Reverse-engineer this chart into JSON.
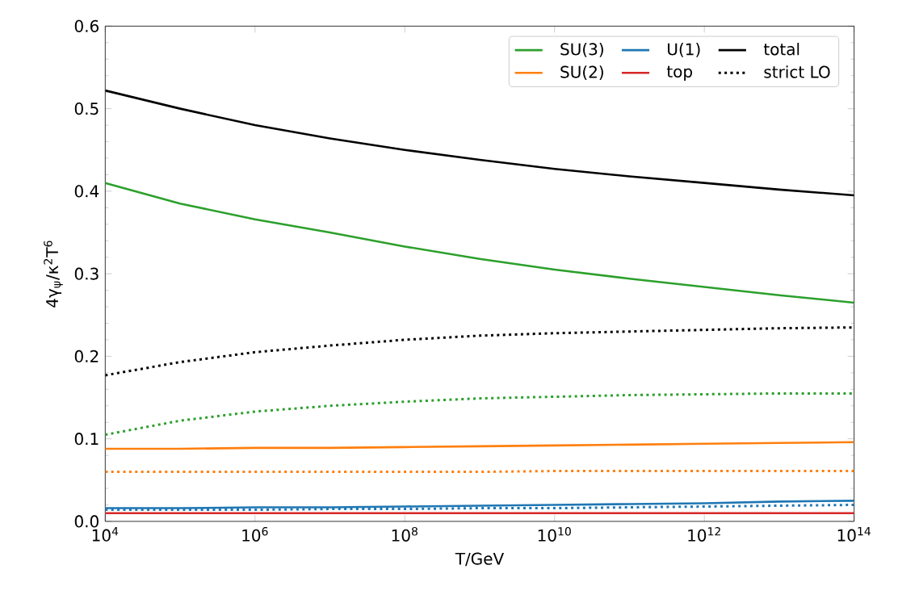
{
  "chart_data": {
    "type": "line",
    "xlabel": "T/GeV",
    "ylabel": "4γ$_{ψ}$/κ$^{2}$T$^{6}$",
    "x": [
      10000.0,
      100000.0,
      1000000.0,
      10000000.0,
      100000000.0,
      1000000000.0,
      10000000000.0,
      100000000000.0,
      1000000000000.0,
      10000000000000.0,
      100000000000000.0
    ],
    "series": [
      {
        "name": "SU(3)",
        "color": "#2ca02c",
        "line_style": "solid",
        "values": [
          0.41,
          0.385,
          0.366,
          0.35,
          0.333,
          0.318,
          0.305,
          0.294,
          0.284,
          0.274,
          0.265
        ]
      },
      {
        "name": "SU(2)",
        "color": "#ff7f0e",
        "line_style": "solid",
        "values": [
          0.088,
          0.088,
          0.089,
          0.089,
          0.09,
          0.091,
          0.092,
          0.093,
          0.094,
          0.095,
          0.096
        ]
      },
      {
        "name": "U(1)",
        "color": "#1f77b4",
        "line_style": "solid",
        "values": [
          0.016,
          0.016,
          0.017,
          0.017,
          0.018,
          0.019,
          0.02,
          0.021,
          0.022,
          0.024,
          0.025
        ]
      },
      {
        "name": "top",
        "color": "#d62728",
        "line_style": "solid",
        "values": [
          0.01,
          0.01,
          0.01,
          0.01,
          0.01,
          0.01,
          0.01,
          0.01,
          0.01,
          0.01,
          0.01
        ]
      },
      {
        "name": "total",
        "color": "#000000",
        "line_style": "solid",
        "values": [
          0.522,
          0.5,
          0.48,
          0.464,
          0.45,
          0.438,
          0.427,
          0.418,
          0.41,
          0.402,
          0.395
        ]
      },
      {
        "name": "strict LO",
        "color": "#000000",
        "line_style": "dotted",
        "values": [
          0.177,
          0.193,
          0.205,
          0.213,
          0.22,
          0.225,
          0.228,
          0.23,
          0.232,
          0.234,
          0.235
        ]
      },
      {
        "color": "#2ca02c",
        "line_style": "dotted",
        "values": [
          0.105,
          0.122,
          0.133,
          0.14,
          0.145,
          0.149,
          0.151,
          0.153,
          0.154,
          0.155,
          0.155
        ]
      },
      {
        "color": "#ff7f0e",
        "line_style": "dotted",
        "values": [
          0.06,
          0.06,
          0.06,
          0.06,
          0.06,
          0.06,
          0.061,
          0.061,
          0.061,
          0.061,
          0.061
        ]
      },
      {
        "color": "#1f77b4",
        "line_style": "dotted",
        "values": [
          0.014,
          0.014,
          0.014,
          0.015,
          0.015,
          0.016,
          0.016,
          0.017,
          0.018,
          0.019,
          0.02
        ]
      }
    ],
    "log": "x",
    "xlim": [
      10000.0,
      100000000000000.0
    ],
    "ylim": [
      0,
      0.6
    ],
    "xticks": [
      {
        "value": 10000.0,
        "label": "10$^{4}$"
      },
      {
        "value": 1000000.0,
        "label": "10$^{6}$"
      },
      {
        "value": 100000000.0,
        "label": "10$^{8}$"
      },
      {
        "value": 10000000000.0,
        "label": "10$^{10}$"
      },
      {
        "value": 1000000000000.0,
        "label": "10$^{12}$"
      },
      {
        "value": 100000000000000.0,
        "label": "10$^{14}$"
      }
    ],
    "yticks": [
      {
        "value": 0,
        "label": "0.0"
      },
      {
        "value": 0.1,
        "label": "0.1"
      },
      {
        "value": 0.2,
        "label": "0.2"
      },
      {
        "value": 0.3,
        "label": "0.3"
      },
      {
        "value": 0.4,
        "label": "0.4"
      },
      {
        "value": 0.5,
        "label": "0.5"
      },
      {
        "value": 0.6,
        "label": "0.6"
      }
    ],
    "legend": "top right",
    "grid": false,
    "marker": "none"
  }
}
